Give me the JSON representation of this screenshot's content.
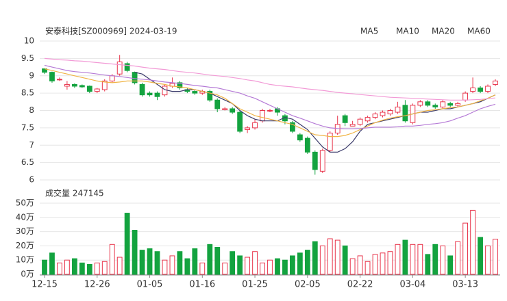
{
  "chart_data": {
    "type": "candlestick",
    "title": "安泰科技[SZ000969] 2024-03-19",
    "volume_title": "成交量 247145",
    "categories": [
      "12-15",
      null,
      null,
      null,
      null,
      null,
      null,
      "12-26",
      null,
      null,
      null,
      null,
      null,
      null,
      "01-05",
      null,
      null,
      null,
      null,
      null,
      null,
      "01-16",
      null,
      null,
      null,
      null,
      null,
      null,
      "01-25",
      null,
      null,
      null,
      null,
      null,
      null,
      "02-05",
      null,
      null,
      null,
      null,
      null,
      null,
      "02-22",
      null,
      null,
      null,
      null,
      null,
      null,
      "03-04",
      null,
      null,
      null,
      null,
      null,
      null,
      "03-13",
      null,
      null,
      null,
      null
    ],
    "open": [
      9.2,
      9.1,
      8.88,
      8.7,
      8.75,
      8.72,
      8.7,
      8.55,
      8.6,
      8.85,
      9.05,
      9.35,
      9.1,
      8.75,
      8.5,
      8.5,
      8.45,
      8.7,
      8.8,
      8.6,
      8.55,
      8.5,
      8.55,
      8.3,
      8.02,
      8.05,
      7.95,
      7.45,
      7.5,
      7.7,
      8.0,
      8.05,
      7.85,
      7.65,
      7.3,
      7.2,
      6.8,
      6.25,
      6.85,
      7.35,
      7.85,
      7.55,
      7.6,
      7.7,
      7.8,
      7.85,
      7.9,
      7.95,
      8.15,
      7.65,
      8.15,
      8.25,
      8.15,
      8.1,
      8.2,
      8.15,
      8.3,
      8.55,
      8.65,
      8.55,
      8.75
    ],
    "high": [
      9.22,
      9.12,
      8.95,
      8.85,
      8.78,
      8.75,
      8.72,
      8.65,
      8.9,
      9.05,
      9.6,
      9.4,
      9.12,
      8.8,
      8.55,
      8.55,
      8.75,
      8.95,
      8.85,
      8.65,
      8.6,
      8.6,
      8.6,
      8.35,
      8.1,
      8.1,
      8.0,
      7.55,
      7.75,
      8.05,
      8.05,
      8.1,
      7.9,
      7.7,
      7.35,
      7.25,
      6.85,
      6.9,
      7.4,
      7.85,
      7.9,
      7.7,
      7.8,
      7.85,
      7.95,
      8.0,
      8.05,
      8.25,
      8.3,
      8.2,
      8.3,
      8.3,
      8.2,
      8.3,
      8.25,
      8.25,
      8.55,
      8.95,
      8.7,
      8.75,
      8.9
    ],
    "low": [
      9.05,
      8.8,
      8.85,
      8.6,
      8.65,
      8.65,
      8.5,
      8.5,
      8.55,
      8.8,
      9.0,
      9.1,
      8.75,
      8.4,
      8.4,
      8.3,
      8.4,
      8.65,
      8.6,
      8.5,
      8.45,
      8.45,
      8.25,
      7.95,
      8.0,
      7.9,
      7.35,
      7.35,
      7.45,
      7.65,
      7.95,
      7.85,
      7.6,
      7.35,
      7.1,
      6.75,
      6.15,
      6.2,
      6.8,
      7.3,
      7.55,
      7.55,
      7.55,
      7.65,
      7.75,
      7.8,
      7.85,
      7.9,
      7.65,
      7.6,
      8.1,
      8.1,
      8.05,
      8.05,
      8.1,
      8.1,
      8.25,
      8.5,
      8.5,
      8.5,
      8.7
    ],
    "close": [
      9.1,
      8.85,
      8.9,
      8.75,
      8.7,
      8.68,
      8.55,
      8.62,
      8.85,
      9.0,
      9.4,
      9.15,
      8.8,
      8.45,
      8.45,
      8.4,
      8.7,
      8.78,
      8.65,
      8.55,
      8.5,
      8.55,
      8.3,
      8.05,
      8.05,
      7.95,
      7.4,
      7.5,
      7.65,
      8.0,
      8.0,
      7.95,
      7.7,
      7.4,
      7.15,
      6.8,
      6.3,
      6.85,
      7.35,
      7.6,
      7.65,
      7.6,
      7.75,
      7.8,
      7.9,
      7.95,
      8.0,
      8.1,
      7.7,
      8.15,
      8.25,
      8.15,
      8.1,
      8.25,
      8.15,
      8.2,
      8.5,
      8.65,
      8.55,
      8.7,
      8.85
    ],
    "volume": [
      10,
      15,
      8,
      10,
      11,
      8,
      7,
      8,
      9,
      21,
      12,
      43,
      31,
      17,
      18,
      16,
      10,
      13,
      16,
      11,
      18,
      8,
      21,
      19,
      8,
      16,
      13,
      12,
      16,
      8,
      10,
      11,
      10,
      13,
      15,
      17,
      23,
      20,
      25,
      24,
      20,
      11,
      13,
      9,
      14,
      15,
      16,
      21,
      24,
      21,
      21,
      14,
      21,
      20,
      13,
      23,
      36,
      45,
      26,
      20,
      24.7
    ],
    "up_color": "#e8334a",
    "down_color": "#13a33f",
    "ma": [
      {
        "name": "MA5",
        "color": "#3a3a6a",
        "values": [
          null,
          null,
          null,
          null,
          null,
          null,
          null,
          null,
          null,
          null,
          null,
          null,
          9.1,
          9.05,
          8.9,
          8.75,
          8.6,
          8.55,
          8.55,
          8.6,
          8.6,
          8.55,
          8.5,
          8.4,
          8.3,
          8.2,
          8.0,
          7.85,
          7.75,
          7.7,
          7.7,
          7.7,
          7.8,
          7.75,
          7.6,
          7.45,
          7.2,
          6.95,
          6.8,
          6.8,
          6.9,
          7.1,
          7.4,
          7.6,
          7.65,
          7.7,
          7.75,
          7.8,
          7.85,
          7.9,
          7.95,
          7.95,
          8.0,
          8.05,
          8.05,
          8.1,
          8.15,
          8.2,
          8.25,
          8.35,
          8.45
        ]
      },
      {
        "name": "MA10",
        "color": "#f0b445",
        "values": [
          9.2,
          9.15,
          9.1,
          9.05,
          9.0,
          8.95,
          8.9,
          8.85,
          8.82,
          8.8,
          8.82,
          8.85,
          8.85,
          8.85,
          8.82,
          8.78,
          8.75,
          8.7,
          8.68,
          8.65,
          8.6,
          8.55,
          8.5,
          8.45,
          8.35,
          8.2,
          8.05,
          7.95,
          7.85,
          7.8,
          7.75,
          7.7,
          7.65,
          7.6,
          7.5,
          7.4,
          7.3,
          7.28,
          7.25,
          7.25,
          7.28,
          7.35,
          7.45,
          7.55,
          7.65,
          7.72,
          7.78,
          7.82,
          7.85,
          7.9,
          7.95,
          8.0,
          8.02,
          8.05,
          8.08,
          8.1,
          8.15,
          8.2,
          8.28,
          8.35,
          8.45
        ]
      },
      {
        "name": "MA20",
        "color": "#b57ad6",
        "values": [
          9.3,
          9.25,
          9.2,
          9.15,
          9.12,
          9.1,
          9.08,
          9.05,
          9.02,
          9.0,
          8.98,
          8.95,
          8.92,
          8.9,
          8.88,
          8.85,
          8.82,
          8.8,
          8.78,
          8.75,
          8.72,
          8.7,
          8.67,
          8.65,
          8.6,
          8.55,
          8.5,
          8.42,
          8.35,
          8.25,
          8.15,
          8.05,
          7.95,
          7.85,
          7.78,
          7.7,
          7.62,
          7.55,
          7.5,
          7.48,
          7.47,
          7.47,
          7.48,
          7.5,
          7.52,
          7.52,
          7.52,
          7.53,
          7.55,
          7.55,
          7.57,
          7.6,
          7.62,
          7.65,
          7.7,
          7.78,
          7.85,
          7.95,
          8.05,
          8.12,
          8.18
        ]
      },
      {
        "name": "MA60",
        "color": "#f29ad6",
        "values": [
          9.5,
          9.48,
          9.46,
          9.45,
          9.43,
          9.42,
          9.4,
          9.38,
          9.36,
          9.34,
          9.32,
          9.3,
          9.28,
          9.25,
          9.22,
          9.2,
          9.18,
          9.15,
          9.12,
          9.1,
          9.08,
          9.05,
          9.02,
          9.0,
          8.98,
          8.95,
          8.92,
          8.88,
          8.85,
          8.8,
          8.75,
          8.72,
          8.7,
          8.68,
          8.65,
          8.62,
          8.6,
          8.58,
          8.55,
          8.52,
          8.5,
          8.48,
          8.46,
          8.44,
          8.42,
          8.4,
          8.38,
          8.37,
          8.36,
          8.35,
          8.34,
          8.33,
          8.32,
          8.31,
          8.3,
          8.3,
          8.3,
          8.31,
          8.32,
          8.34,
          8.36
        ]
      }
    ],
    "ylim": [
      6,
      10
    ],
    "yticks": [
      6,
      6.5,
      7,
      7.5,
      8,
      8.5,
      9,
      9.5,
      10
    ],
    "vlim": [
      0,
      50
    ],
    "vticks": [
      {
        "value": 0,
        "label": "0万"
      },
      {
        "value": 10,
        "label": "10万"
      },
      {
        "value": 20,
        "label": "20万"
      },
      {
        "value": 30,
        "label": "30万"
      },
      {
        "value": 40,
        "label": "40万"
      },
      {
        "value": 50,
        "label": "50万"
      }
    ],
    "grid": true
  }
}
